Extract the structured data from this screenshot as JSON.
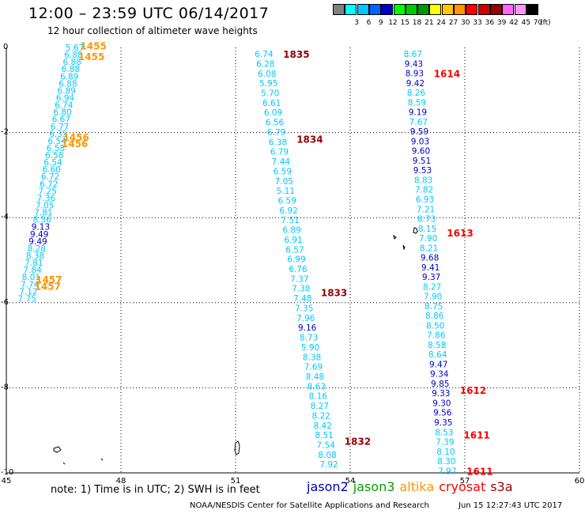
{
  "header": {
    "title": "12:00 – 23:59 UTC 06/14/2017",
    "subtitle": "12 hour collection of altimeter wave heights"
  },
  "legend": {
    "unit": "(ft)",
    "items": [
      {
        "label": "",
        "color": "#808080"
      },
      {
        "label": "3",
        "color": "#00ffff"
      },
      {
        "label": "6",
        "color": "#00c8ff"
      },
      {
        "label": "9",
        "color": "#0064ff"
      },
      {
        "label": "12",
        "color": "#0000c8"
      },
      {
        "label": "15",
        "color": "#00ff00"
      },
      {
        "label": "18",
        "color": "#00c800"
      },
      {
        "label": "21",
        "color": "#009600"
      },
      {
        "label": "24",
        "color": "#ffff00"
      },
      {
        "label": "27",
        "color": "#ffc800"
      },
      {
        "label": "30",
        "color": "#ff9600"
      },
      {
        "label": "33",
        "color": "#ff0000"
      },
      {
        "label": "36",
        "color": "#c80000"
      },
      {
        "label": "39",
        "color": "#960000"
      },
      {
        "label": "42",
        "color": "#ff64ff"
      },
      {
        "label": "45",
        "color": "#ff96ff"
      },
      {
        "label": "70",
        "color": "#000000"
      }
    ]
  },
  "map": {
    "x_ticks": [
      "45",
      "48",
      "51",
      "54",
      "57",
      "60"
    ],
    "y_ticks": [
      "0",
      "-2",
      "-4",
      "-6",
      "-8",
      "-10"
    ],
    "tracks": [
      {
        "id": "track-1",
        "lon_start": 46.55,
        "lat_start": 0.0,
        "lon_end": 45.3,
        "lat_end": -5.9,
        "value_color": "#00c8ff",
        "values": [
          "5.67",
          "6.88",
          "6.88",
          "6.88",
          "6.89",
          "6.88",
          "6.89",
          "6.94",
          "6.74",
          "6.80",
          "6.67",
          "6.77",
          "6.35",
          "6.54",
          "6.58",
          "6.58",
          "6.54",
          "6.60",
          "6.72",
          "6.72",
          "7.25",
          "7.36",
          "7.05",
          "7.81",
          "8.56",
          "9.13",
          "9.49",
          "9.49",
          "8.28",
          "8.38",
          "7.81",
          "7.84",
          "8.01",
          "7.74",
          "7.12",
          "7.75"
        ],
        "dark_indexes": [
          25,
          26,
          27
        ],
        "time_labels": [
          {
            "text": "1455",
            "lat": 0.05,
            "dx": 18
          },
          {
            "text": "1455",
            "lat": -0.2,
            "dx": 18
          },
          {
            "text": "1456",
            "lat": -2.1,
            "dx": 18
          },
          {
            "text": "1456",
            "lat": -2.25,
            "dx": 18
          },
          {
            "text": "1457",
            "lat": -5.45,
            "dx": 18
          },
          {
            "text": "1457",
            "lat": -5.6,
            "dx": 18
          }
        ],
        "time_color": "#ff9600"
      },
      {
        "id": "track-2",
        "lon_start": 51.5,
        "lat_start": -0.15,
        "lon_end": 53.2,
        "lat_end": -9.8,
        "value_color": "#00c8ff",
        "values": [
          "6.74",
          "6.28",
          "6.08",
          "5.95",
          "5.70",
          "6.61",
          "6.09",
          "6.56",
          "6.79",
          "6.38",
          "6.79",
          "7.44",
          "6.59",
          "7.05",
          "5.11",
          "6.59",
          "6.92",
          "7.51",
          "6.89",
          "6.91",
          "6.57",
          "6.99",
          "6.76",
          "7.37",
          "7.38",
          "7.48",
          "7.35",
          "7.96",
          "9.16",
          "8.73",
          "5.90",
          "8.38",
          "7.69",
          "8.48",
          "8.63",
          "8.16",
          "8.27",
          "8.22",
          "8.42",
          "8.51",
          "7.54",
          "8.08",
          "7.92"
        ],
        "dark_indexes": [
          28
        ],
        "time_labels": [
          {
            "text": "1835",
            "lat": -0.15,
            "dx": 36
          },
          {
            "text": "1834",
            "lat": -2.15,
            "dx": 36
          },
          {
            "text": "1833",
            "lat": -5.75,
            "dx": 36
          },
          {
            "text": "1832",
            "lat": -9.25,
            "dx": 36
          }
        ],
        "time_color": "#960000"
      },
      {
        "id": "track-3",
        "lon_start": 55.4,
        "lat_start": -0.15,
        "lon_end": 56.3,
        "lat_end": -9.95,
        "value_color": "#00c8ff",
        "values": [
          "8.67",
          "9.43",
          "8.93",
          "9.42",
          "8.26",
          "8.59",
          "9.19",
          "7.67",
          "9.59",
          "9.03",
          "9.60",
          "9.51",
          "9.53",
          "8.83",
          "7.82",
          "6.93",
          "7.21",
          "8.73",
          "8.15",
          "7.90",
          "8.21",
          "9.68",
          "9.41",
          "9.37",
          "8.27",
          "7.90",
          "8.75",
          "8.86",
          "8.50",
          "7.86",
          "8.58",
          "8.64",
          "9.47",
          "9.34",
          "9.85",
          "9.33",
          "9.30",
          "9.56",
          "9.35",
          "8.53",
          "7.39",
          "8.10",
          "8.30",
          "7.97"
        ],
        "dark_indexes": [
          1,
          2,
          3,
          6,
          8,
          9,
          10,
          11,
          12,
          21,
          22,
          23,
          32,
          33,
          34,
          35,
          36,
          37,
          38
        ],
        "time_labels": [
          {
            "text": "1614",
            "lat": -0.6,
            "dx": 36
          },
          {
            "text": "1613",
            "lat": -4.35,
            "dx": 36
          },
          {
            "text": "1612",
            "lat": -8.05,
            "dx": 36
          },
          {
            "text": "1611",
            "lat": -9.1,
            "dx": 36
          },
          {
            "text": "1611",
            "lat": -9.95,
            "dx": 36
          }
        ],
        "time_color": "#ff0000"
      }
    ]
  },
  "footer": {
    "note": "note:  1) Time is in UTC;  2) SWH is in feet",
    "satellites": [
      {
        "name": "jason2",
        "color": "#0000c8"
      },
      {
        "name": "jason3",
        "color": "#00a000"
      },
      {
        "name": "altika",
        "color": "#ff9600"
      },
      {
        "name": "cryosat",
        "color": "#ff0000"
      },
      {
        "name": "s3a",
        "color": "#960000"
      }
    ],
    "credit": "NOAA/NESDIS Center for Satellite Applications and Research",
    "timestamp": "Jun 15 12:27:43 UTC 2017"
  }
}
